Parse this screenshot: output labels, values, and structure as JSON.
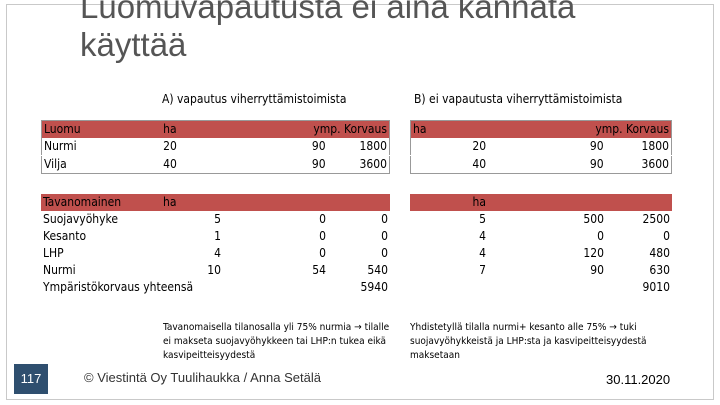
{
  "title": "Luomuvapautusta ei aina kannata käyttää",
  "section_a": {
    "title": "A) vapautus viherryttämistoimista",
    "table1": {
      "header": [
        "Luomu",
        "ha",
        "ymp. Korvaus",
        ""
      ],
      "rows": [
        [
          "Nurmi",
          "20",
          "90",
          "1800"
        ],
        [
          "Vilja",
          "40",
          "90",
          "3600"
        ]
      ]
    },
    "table2": {
      "header": [
        "Tavanomainen",
        "ha",
        "",
        ""
      ],
      "rows": [
        [
          "Suojavyöhyke",
          "5",
          "0",
          "0"
        ],
        [
          "Kesanto",
          "1",
          "0",
          "0"
        ],
        [
          "LHP",
          "4",
          "0",
          "0"
        ],
        [
          "Nurmi",
          "10",
          "54",
          "540"
        ]
      ],
      "total_label": "Ympäristökorvaus yhteensä",
      "total_value": "5940"
    },
    "note": "Tavanomaisella tilanosalla yli 75% nurmia → tilalle ei makseta suojavyöhykkeen tai LHP:n tukea eikä kasvipeitteisyydestä"
  },
  "section_b": {
    "title": "B) ei vapautusta viherryttämistoimista",
    "table1": {
      "header": [
        "ha",
        "ymp. Korvaus",
        ""
      ],
      "rows": [
        [
          "20",
          "90",
          "1800"
        ],
        [
          "40",
          "90",
          "3600"
        ]
      ]
    },
    "table2": {
      "header": [
        "ha",
        "",
        ""
      ],
      "rows": [
        [
          "5",
          "500",
          "2500"
        ],
        [
          "4",
          "0",
          "0"
        ],
        [
          "4",
          "120",
          "480"
        ],
        [
          "7",
          "90",
          "630"
        ]
      ],
      "total_value": "9010"
    },
    "note": "Yhdistetyllä tilalla nurmi+ kesanto alle 75% → tuki suojavyöhykkeistä ja LHP:sta ja kasvipeitteisyydestä maksetaan"
  },
  "footer": {
    "slide_number": "117",
    "copyright": "© Viestintä Oy Tuulihaukka / Anna Setälä",
    "date": "30.11.2020"
  },
  "colors": {
    "header_fill": "#c0504d",
    "slide_number_bg": "#2f4f6f"
  }
}
